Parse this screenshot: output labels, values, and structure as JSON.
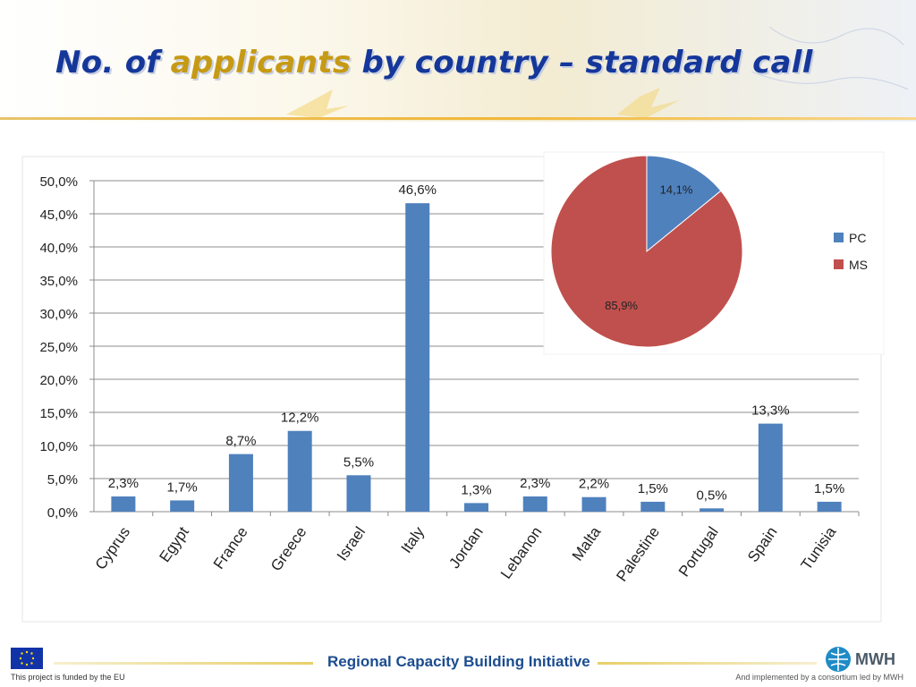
{
  "slide": {
    "title_part1": "No. of ",
    "title_highlight": "applicants",
    "title_part2": " by country – standard call"
  },
  "chart_data": [
    {
      "type": "bar",
      "categories": [
        "Cyprus",
        "Egypt",
        "France",
        "Greece",
        "Israel",
        "Italy",
        "Jordan",
        "Lebanon",
        "Malta",
        "Palestine",
        "Portugal",
        "Spain",
        "Tunisia"
      ],
      "values": [
        2.3,
        1.7,
        8.7,
        12.2,
        5.5,
        46.6,
        1.3,
        2.3,
        2.2,
        1.5,
        0.5,
        13.3,
        1.5
      ],
      "value_labels": [
        "2,3%",
        "1,7%",
        "8,7%",
        "12,2%",
        "5,5%",
        "46,6%",
        "1,3%",
        "2,3%",
        "2,2%",
        "1,5%",
        "0,5%",
        "13,3%",
        "1,5%"
      ],
      "y_ticks": [
        "0,0%",
        "5,0%",
        "10,0%",
        "15,0%",
        "20,0%",
        "25,0%",
        "30,0%",
        "35,0%",
        "40,0%",
        "45,0%",
        "50,0%"
      ],
      "ylim": [
        0,
        50
      ],
      "grid": true,
      "color": "#4f81bd"
    },
    {
      "type": "pie",
      "slices": [
        {
          "name": "PC",
          "value": 14.1,
          "label": "14,1%",
          "color": "#4f81bd"
        },
        {
          "name": "MS",
          "value": 85.9,
          "label": "85,9%",
          "color": "#c0504d"
        }
      ],
      "legend_position": "right"
    }
  ],
  "footer": {
    "title": "Regional Capacity Building Initiative",
    "left_text": "This project is funded by the EU",
    "right_text": "And implemented by a consortium led by MWH",
    "logo_text": "MWH"
  }
}
